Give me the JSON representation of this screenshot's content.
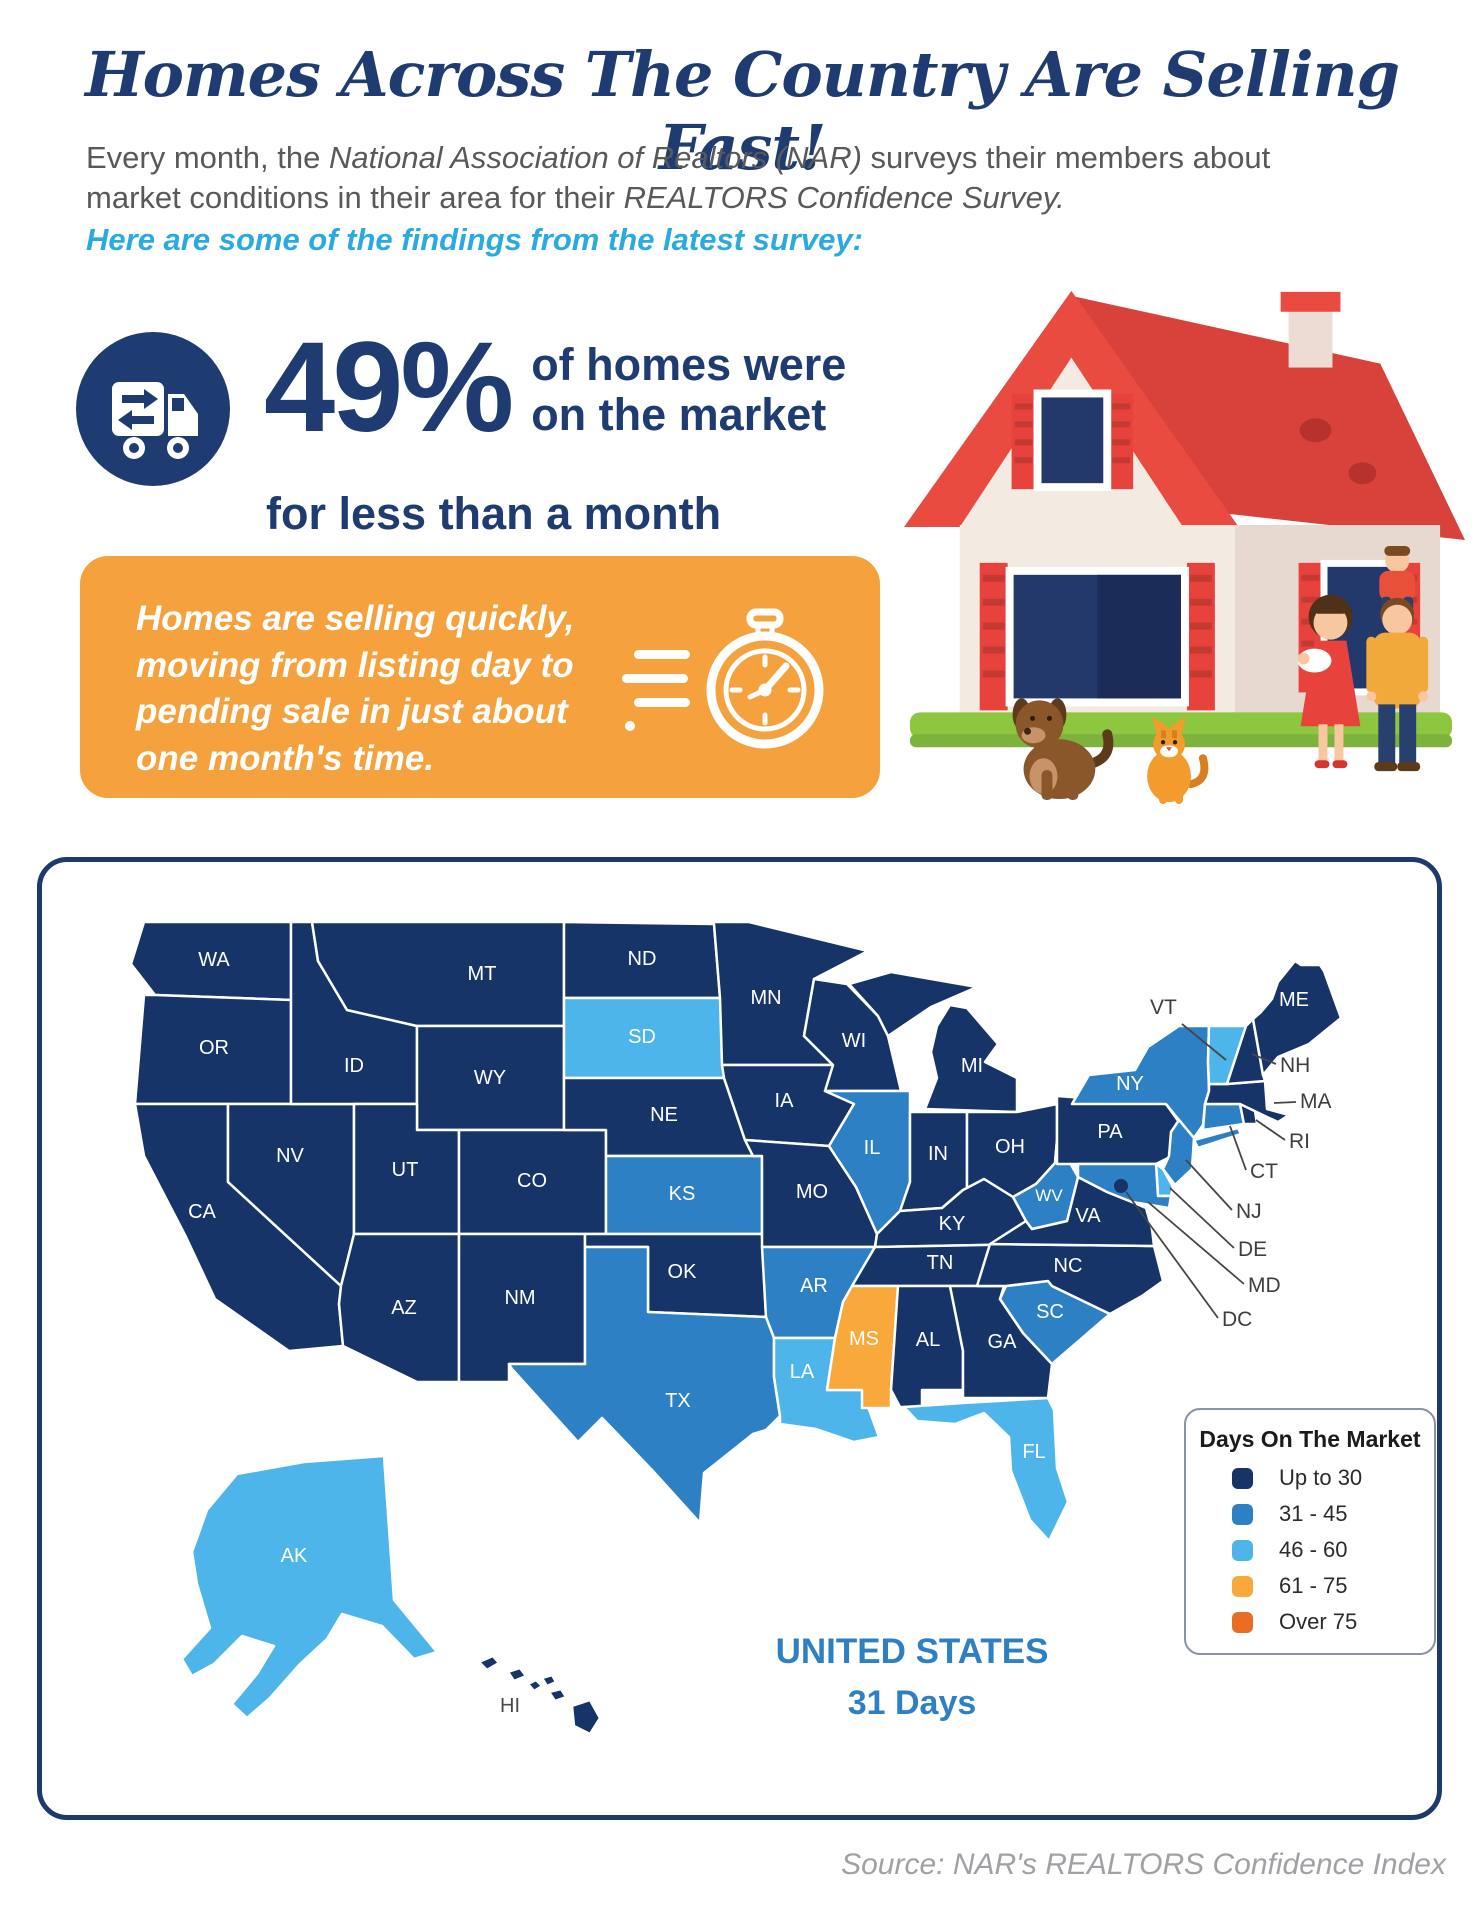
{
  "header": {
    "title": "Homes Across The Country Are Selling Fast!",
    "intro": {
      "pre": "Every month, the ",
      "em1": "National Association of Realtors (NAR)",
      "mid": " surveys their members about market conditions in their area for their ",
      "em2": "REALTORS Confidence Survey."
    },
    "highlight": "Here are some of the findings from the latest survey:"
  },
  "stat": {
    "value": "49%",
    "line1": "of homes were",
    "line2": "on the market",
    "line3": "for less than a month"
  },
  "callout_box": {
    "text": "Homes are selling quickly, moving from listing day to pending sale in just about one month's time."
  },
  "map": {
    "legend": {
      "title": "Days On The Market",
      "items": [
        {
          "label": "Up to 30",
          "color": "#163467"
        },
        {
          "label": "31 - 45",
          "color": "#2e80c4"
        },
        {
          "label": "46 - 60",
          "color": "#4db5ea"
        },
        {
          "label": "61 - 75",
          "color": "#f9a93c"
        },
        {
          "label": "Over 75",
          "color": "#e96e24"
        }
      ]
    }
  },
  "chart_data": {
    "type": "choropleth",
    "title": "Days On The Market",
    "categories": [
      "Up to 30",
      "31 - 45",
      "46 - 60",
      "61 - 75",
      "Over 75"
    ],
    "national": {
      "label": "UNITED STATES",
      "value": "31 Days"
    },
    "states": [
      {
        "abbr": "WA",
        "value": "Up to 30"
      },
      {
        "abbr": "OR",
        "value": "Up to 30"
      },
      {
        "abbr": "CA",
        "value": "Up to 30"
      },
      {
        "abbr": "NV",
        "value": "Up to 30"
      },
      {
        "abbr": "ID",
        "value": "Up to 30"
      },
      {
        "abbr": "MT",
        "value": "Up to 30"
      },
      {
        "abbr": "WY",
        "value": "Up to 30"
      },
      {
        "abbr": "UT",
        "value": "Up to 30"
      },
      {
        "abbr": "CO",
        "value": "Up to 30"
      },
      {
        "abbr": "AZ",
        "value": "Up to 30"
      },
      {
        "abbr": "NM",
        "value": "Up to 30"
      },
      {
        "abbr": "ND",
        "value": "Up to 30"
      },
      {
        "abbr": "SD",
        "value": "46 - 60"
      },
      {
        "abbr": "NE",
        "value": "Up to 30"
      },
      {
        "abbr": "KS",
        "value": "31 - 45"
      },
      {
        "abbr": "OK",
        "value": "Up to 30"
      },
      {
        "abbr": "TX",
        "value": "31 - 45"
      },
      {
        "abbr": "MN",
        "value": "Up to 30"
      },
      {
        "abbr": "IA",
        "value": "Up to 30"
      },
      {
        "abbr": "MO",
        "value": "Up to 30"
      },
      {
        "abbr": "AR",
        "value": "31 - 45"
      },
      {
        "abbr": "LA",
        "value": "46 - 60"
      },
      {
        "abbr": "WI",
        "value": "Up to 30"
      },
      {
        "abbr": "MI",
        "value": "Up to 30"
      },
      {
        "abbr": "IL",
        "value": "31 - 45"
      },
      {
        "abbr": "IN",
        "value": "Up to 30"
      },
      {
        "abbr": "OH",
        "value": "Up to 30"
      },
      {
        "abbr": "KY",
        "value": "Up to 30"
      },
      {
        "abbr": "TN",
        "value": "Up to 30"
      },
      {
        "abbr": "MS",
        "value": "61 - 75"
      },
      {
        "abbr": "AL",
        "value": "Up to 30"
      },
      {
        "abbr": "GA",
        "value": "Up to 30"
      },
      {
        "abbr": "FL",
        "value": "46 - 60"
      },
      {
        "abbr": "SC",
        "value": "31 - 45"
      },
      {
        "abbr": "NC",
        "value": "Up to 30"
      },
      {
        "abbr": "VA",
        "value": "Up to 30"
      },
      {
        "abbr": "WV",
        "value": "31 - 45"
      },
      {
        "abbr": "PA",
        "value": "Up to 30"
      },
      {
        "abbr": "NY",
        "value": "31 - 45"
      },
      {
        "abbr": "NJ",
        "value": "31 - 45"
      },
      {
        "abbr": "CT",
        "value": "31 - 45"
      },
      {
        "abbr": "RI",
        "value": "Up to 30"
      },
      {
        "abbr": "MA",
        "value": "Up to 30"
      },
      {
        "abbr": "VT",
        "value": "46 - 60"
      },
      {
        "abbr": "NH",
        "value": "Up to 30"
      },
      {
        "abbr": "ME",
        "value": "Up to 30"
      },
      {
        "abbr": "DE",
        "value": "46 - 60"
      },
      {
        "abbr": "MD",
        "value": "31 - 45"
      },
      {
        "abbr": "DC",
        "value": "Up to 30"
      },
      {
        "abbr": "AK",
        "value": "46 - 60"
      },
      {
        "abbr": "HI",
        "value": "Up to 30"
      }
    ]
  },
  "source": "Source: NAR's REALTORS Confidence Index",
  "colors": {
    "navy": "#1e3c72",
    "cyan": "#29aae1",
    "gray_text": "#58595b",
    "orange_box": "#f5a23e",
    "map_border": "#1e3a6d",
    "roof_red": "#ea4b41",
    "grass_green": "#8dc63f"
  }
}
